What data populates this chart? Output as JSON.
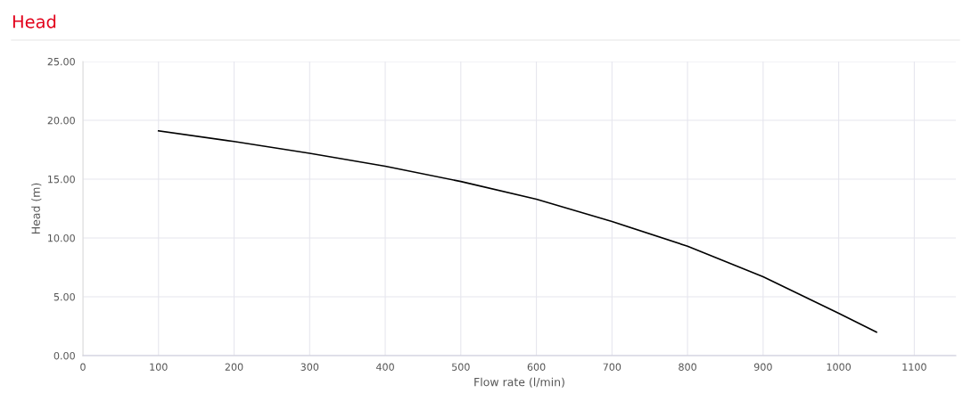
{
  "chart_data": {
    "type": "line",
    "title": "Head",
    "xlabel": "Flow rate (l/min)",
    "ylabel": "Head (m)",
    "x": [
      100,
      200,
      300,
      400,
      500,
      600,
      700,
      800,
      900,
      1000,
      1050
    ],
    "series": [
      {
        "color": "#000000",
        "values": [
          19.1,
          18.2,
          17.2,
          16.1,
          14.8,
          13.3,
          11.4,
          9.3,
          6.7,
          3.6,
          2.0
        ]
      }
    ],
    "xlim": [
      0,
      1155
    ],
    "xticks": [
      0,
      100,
      200,
      300,
      400,
      500,
      600,
      700,
      800,
      900,
      1000,
      1100
    ],
    "ylim": [
      0,
      25
    ],
    "yticks": [
      {
        "value": 0,
        "label": "0.00"
      },
      {
        "value": 5,
        "label": "5.00"
      },
      {
        "value": 10,
        "label": "10.00"
      },
      {
        "value": 15,
        "label": "15.00"
      },
      {
        "value": 20,
        "label": "20.00"
      },
      {
        "value": 25,
        "label": "25.00"
      }
    ],
    "grid": true,
    "marker": "none",
    "line_style": "solid"
  }
}
